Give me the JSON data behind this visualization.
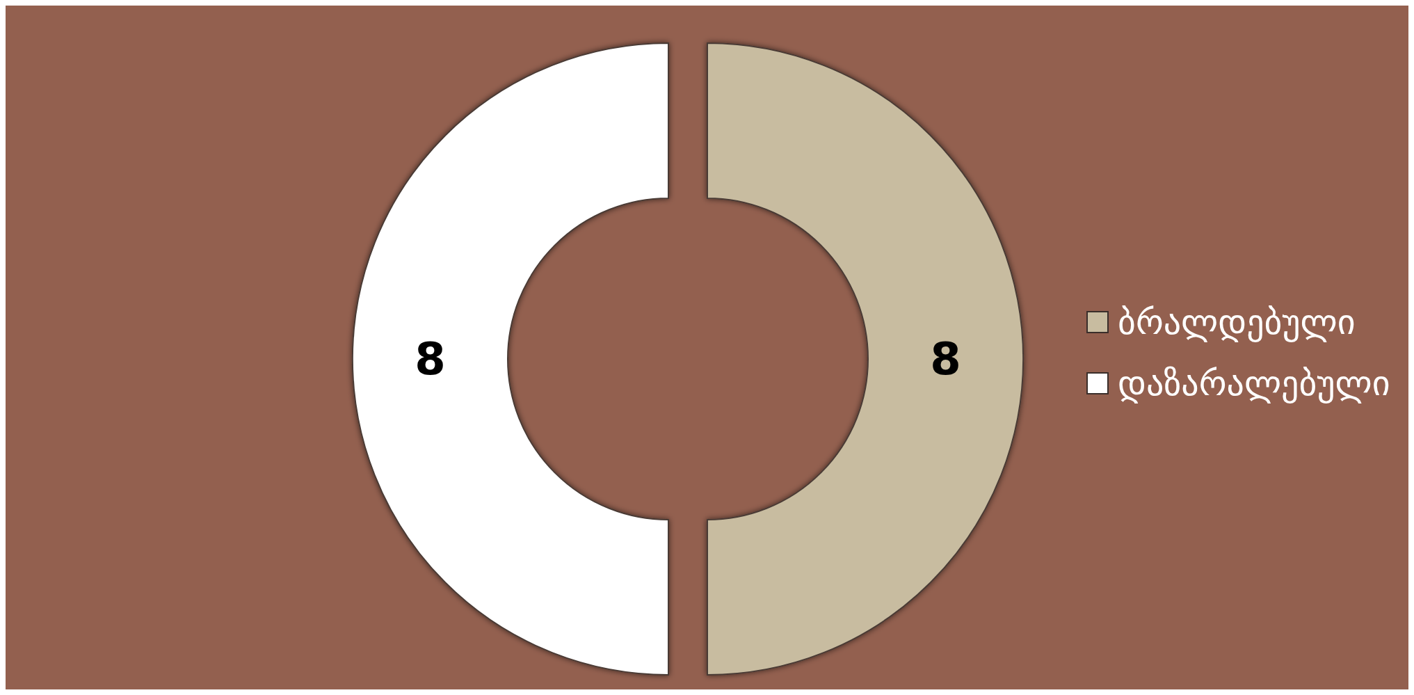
{
  "chart_data": {
    "type": "donut",
    "categories": [
      "ბრალდებული",
      "დაზარალებული"
    ],
    "values": [
      8,
      8
    ],
    "colors": [
      "#c8bca0",
      "#ffffff"
    ],
    "data_labels": true,
    "legend": "right"
  }
}
